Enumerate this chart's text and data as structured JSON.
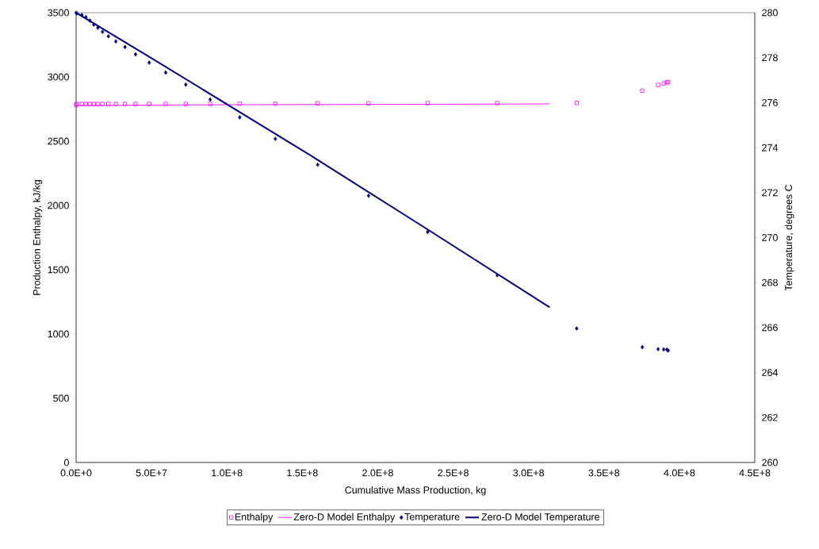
{
  "chart_data": {
    "type": "scatter",
    "xlabel": "Cumulative Mass Production, kg",
    "ylabel": "Production Enthalpy, kJ/kg",
    "y2label": "Temperature, degrees C",
    "xlim": [
      0,
      450000000
    ],
    "ylim": [
      0,
      3500
    ],
    "y2lim": [
      260,
      280
    ],
    "xticks": [
      {
        "value": 0,
        "label": "0.0E+0"
      },
      {
        "value": 50000000,
        "label": "5.0E+7"
      },
      {
        "value": 100000000,
        "label": "1.0E+8"
      },
      {
        "value": 150000000,
        "label": "1.5E+8"
      },
      {
        "value": 200000000,
        "label": "2.0E+8"
      },
      {
        "value": 250000000,
        "label": "2.5E+8"
      },
      {
        "value": 300000000,
        "label": "3.0E+8"
      },
      {
        "value": 350000000,
        "label": "3.5E+8"
      },
      {
        "value": 400000000,
        "label": "4.0E+8"
      },
      {
        "value": 450000000,
        "label": "4.5E+8"
      }
    ],
    "yticks": [
      0,
      500,
      1000,
      1500,
      2000,
      2500,
      3000,
      3500
    ],
    "y2ticks": [
      260,
      262,
      264,
      266,
      268,
      270,
      272,
      274,
      276,
      278,
      280
    ],
    "grid": false,
    "legend": "bottom",
    "series": [
      {
        "name": "Enthalpy",
        "marker": "square",
        "color": "#ff00ff",
        "axis": "y",
        "x": [
          0,
          370000,
          3840000,
          6470000,
          9100000,
          11700000,
          14400000,
          17500000,
          21400000,
          26300000,
          32400000,
          39400000,
          48500000,
          59400000,
          72700000,
          88900000,
          108500000,
          132100000,
          160200000,
          193900000,
          233100000,
          279200000,
          331900000,
          375400000,
          385900000,
          389600000,
          391700000,
          392600000
        ],
        "values": [
          2780,
          2790,
          2790,
          2790,
          2790,
          2790,
          2790,
          2790,
          2790,
          2790,
          2790,
          2790,
          2790,
          2790,
          2790,
          2790,
          2792,
          2792,
          2795,
          2795,
          2796,
          2796,
          2798,
          2893,
          2938,
          2950,
          2957,
          2960
        ]
      },
      {
        "name": "Zero-D Model Enthalpy",
        "type": "line",
        "marker": "none",
        "color": "#ff00ff",
        "axis": "y",
        "x": [
          0,
          100000000,
          200000000,
          314000000
        ],
        "values": [
          2778,
          2784,
          2786,
          2790
        ]
      },
      {
        "name": "Temperature",
        "marker": "diamond",
        "color": "#000080",
        "axis": "y2",
        "x": [
          0,
          370000,
          3840000,
          6470000,
          9100000,
          11700000,
          14400000,
          17500000,
          21400000,
          26300000,
          32400000,
          39400000,
          48500000,
          59400000,
          72700000,
          88900000,
          108500000,
          132100000,
          160200000,
          193900000,
          233100000,
          279200000,
          331900000,
          375400000,
          385900000,
          389600000,
          391700000,
          392600000
        ],
        "values": [
          280,
          279.97,
          279.9,
          279.8,
          279.65,
          279.47,
          279.33,
          279.15,
          278.95,
          278.72,
          278.47,
          278.15,
          277.78,
          277.34,
          276.8,
          276.14,
          275.35,
          274.39,
          273.24,
          271.86,
          270.25,
          268.33,
          265.96,
          265.13,
          265.04,
          265.03,
          265.02,
          264.98
        ]
      },
      {
        "name": "Zero-D Model Temperature",
        "type": "line",
        "marker": "none",
        "color": "#000080",
        "axis": "y2",
        "x": [
          0,
          48500000,
          154600000,
          233100000,
          314000000
        ],
        "values": [
          280,
          278.04,
          273.69,
          270.36,
          266.9
        ]
      }
    ]
  }
}
